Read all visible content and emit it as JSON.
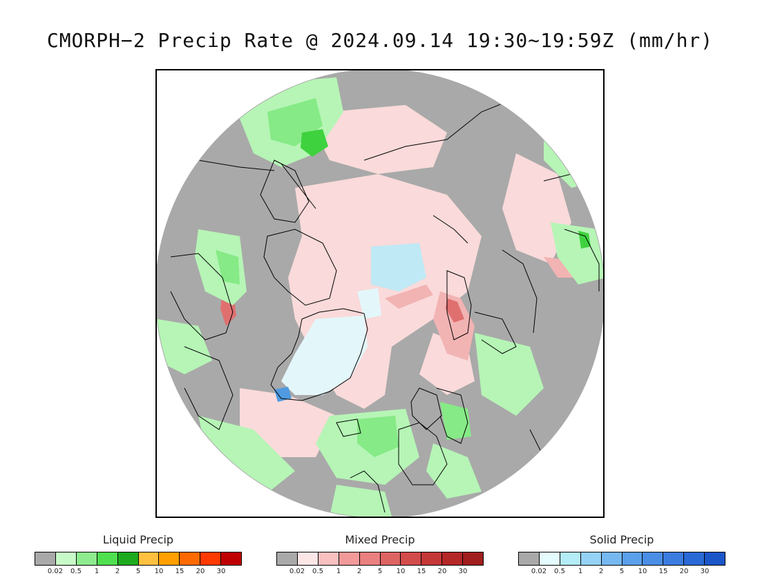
{
  "title": "CMORPH−2 Precip Rate @ 2024.09.14 19:30∼19:59Z (mm/hr)",
  "map": {
    "colors": {
      "no_precip": "#a9a9a9",
      "liquid_light": "#b6f5b6",
      "liquid_med": "#86ea86",
      "liquid_heavy": "#3fd23f",
      "mixed_light": "#fadada",
      "mixed_med": "#f2b3b3",
      "mixed_heavy": "#e07070",
      "solid_light": "#e3f7fb",
      "solid_med": "#bfe9f5",
      "solid_heavy": "#4f9ae0",
      "coast": "#000000"
    }
  },
  "legends": [
    {
      "title": "Liquid Precip",
      "colors": [
        "#a9a9a9",
        "#c8fac8",
        "#8eec8e",
        "#4fe04f",
        "#1eaa1e",
        "#ffc040",
        "#ffa000",
        "#ff6a00",
        "#ff3a00",
        "#c00000"
      ],
      "ticks": [
        "0.02",
        "0.5",
        "1",
        "2",
        "5",
        "10",
        "15",
        "20",
        "30"
      ]
    },
    {
      "title": "Mixed Precip",
      "colors": [
        "#a9a9a9",
        "#fde6e6",
        "#fac0c0",
        "#f29a9a",
        "#ea8080",
        "#de6464",
        "#d24c4c",
        "#c43838",
        "#b42828",
        "#a01e1e"
      ],
      "ticks": [
        "0.02",
        "0.5",
        "1",
        "2",
        "5",
        "10",
        "15",
        "20",
        "30"
      ]
    },
    {
      "title": "Solid Precip",
      "colors": [
        "#a9a9a9",
        "#e4fcfe",
        "#b4ecf8",
        "#94d2f6",
        "#76b8f0",
        "#5aa0ea",
        "#4a8ee6",
        "#3a7ce0",
        "#2a6ad6",
        "#1a56c8"
      ],
      "ticks": [
        "0.02",
        "0.5",
        "1",
        "2",
        "5",
        "10",
        "15",
        "20",
        "30"
      ]
    }
  ]
}
